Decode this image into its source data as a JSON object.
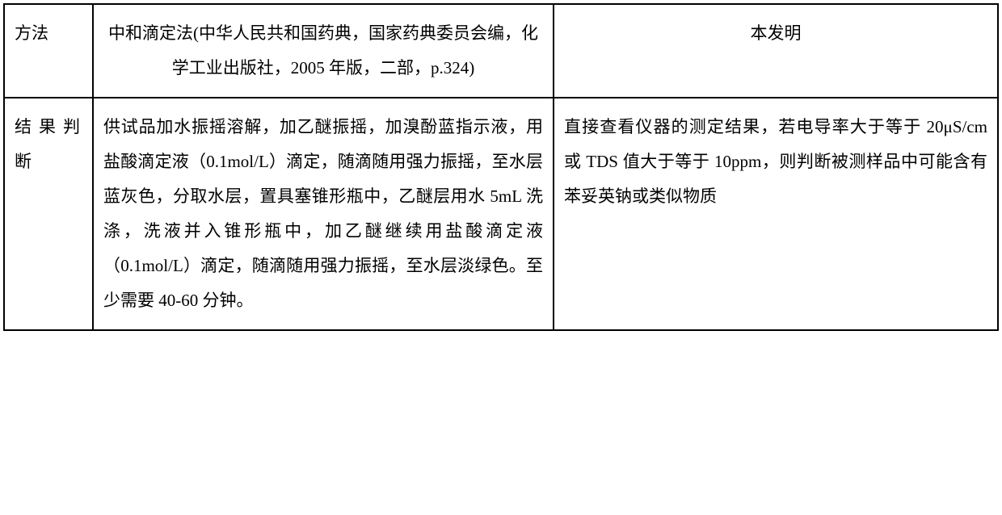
{
  "table": {
    "columns": {
      "col1_width": 110,
      "col2_width": 570
    },
    "styling": {
      "border_color": "#000000",
      "border_width": 2,
      "background_color": "#ffffff",
      "font_size": 21,
      "line_height": 2.05,
      "font_family": "SimSun",
      "text_color": "#000000",
      "cell_padding": "14px 12px"
    },
    "rows": [
      {
        "label": "方法",
        "method1": "中和滴定法(中华人民共和国药典，国家药典委员会编，化学工业出版社，2005 年版，二部，p.324)",
        "method2": "本发明"
      },
      {
        "label": "结果判断",
        "method1": "供试品加水振摇溶解，加乙醚振摇，加溴酚蓝指示液，用盐酸滴定液（0.1mol/L）滴定，随滴随用强力振摇，至水层蓝灰色，分取水层，置具塞锥形瓶中，乙醚层用水 5mL 洗涤，洗液并入锥形瓶中，加乙醚继续用盐酸滴定液（0.1mol/L）滴定，随滴随用强力振摇，至水层淡绿色。至少需要 40-60 分钟。",
        "method2": "直接查看仪器的测定结果，若电导率大于等于 20μS/cm 或 TDS 值大于等于 10ppm，则判断被测样品中可能含有苯妥英钠或类似物质"
      }
    ]
  }
}
